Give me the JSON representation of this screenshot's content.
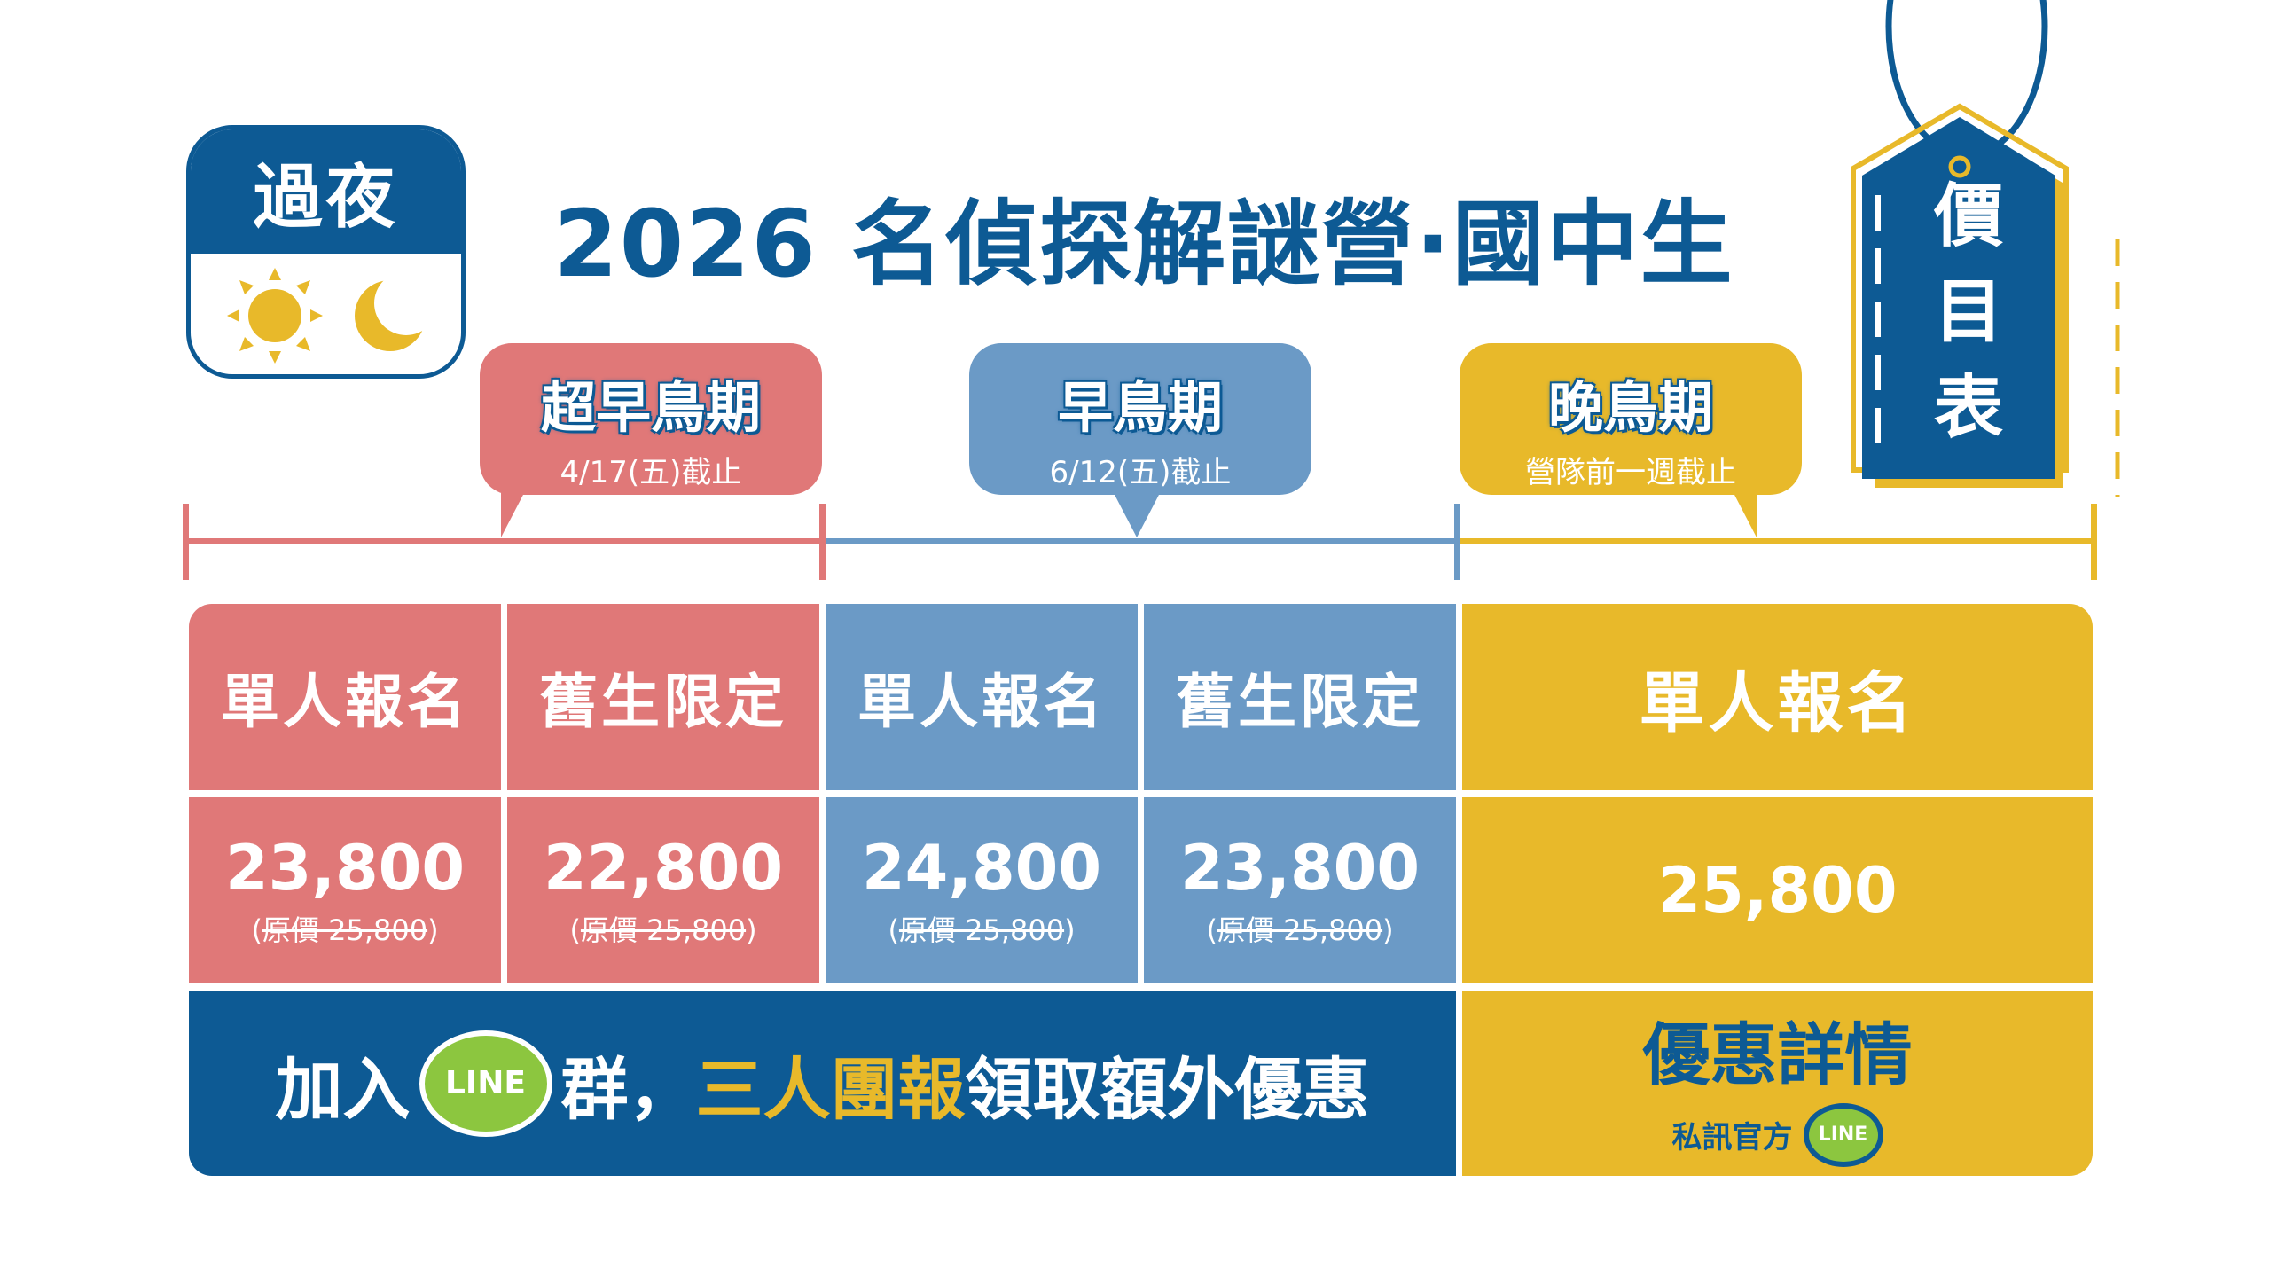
{
  "badge": {
    "label": "過夜",
    "icons": [
      "sun-icon",
      "moon-icon"
    ]
  },
  "title": "2026 名偵探解謎營·國中生",
  "tag": {
    "label": [
      "價",
      "目",
      "表"
    ]
  },
  "periods": [
    {
      "name": "超早鳥期",
      "deadline": "4/17(五)截止",
      "color": "#E07878"
    },
    {
      "name": "早鳥期",
      "deadline": "6/12(五)截止",
      "color": "#6B9AC6"
    },
    {
      "name": "晚鳥期",
      "deadline": "營隊前一週截止",
      "color": "#E8B92A"
    }
  ],
  "table": {
    "headers": [
      "單人報名",
      "舊生限定",
      "單人報名",
      "舊生限定",
      "單人報名"
    ],
    "prices": [
      "23,800",
      "22,800",
      "24,800",
      "23,800",
      "25,800"
    ],
    "original": "原價 25,800"
  },
  "banner": {
    "pre": "加入",
    "line": "LINE",
    "mid": "群，",
    "highlight": "三人團報",
    "post": "領取額外優惠"
  },
  "details": {
    "title": "優惠詳情",
    "sub": "私訊官方",
    "line": "LINE"
  },
  "colors": {
    "navy": "#0D5A94",
    "pink": "#E07878",
    "blue": "#6B9AC6",
    "yellow": "#E8B92A",
    "line_green": "#8CC63F"
  }
}
